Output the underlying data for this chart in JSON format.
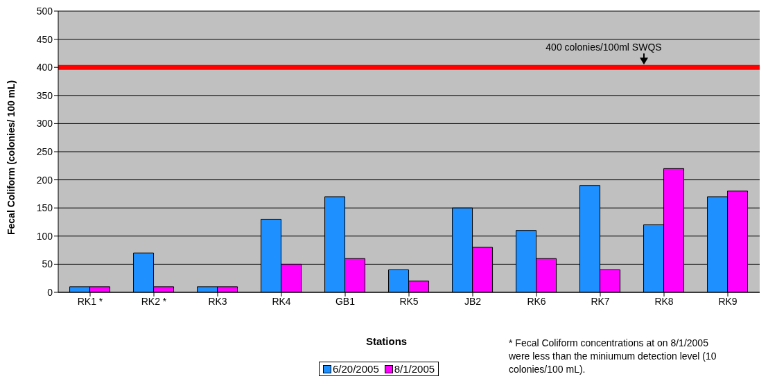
{
  "chart_data": {
    "type": "bar",
    "xlabel": "Stations",
    "ylabel": "Fecal Coliform (colonies/ 100 mL)",
    "categories": [
      "RK1 *",
      "RK2 *",
      "RK3",
      "RK4",
      "GB1",
      "RK5",
      "JB2",
      "RK6",
      "RK7",
      "RK8",
      "RK9"
    ],
    "series": [
      {
        "name": "6/20/2005",
        "color": "#1e90ff",
        "values": [
          10,
          70,
          10,
          130,
          170,
          40,
          150,
          110,
          190,
          120,
          170
        ]
      },
      {
        "name": "8/1/2005",
        "color": "#ff00ff",
        "values": [
          10,
          10,
          10,
          50,
          60,
          20,
          80,
          60,
          40,
          220,
          180
        ]
      }
    ],
    "ylim": [
      0,
      500
    ],
    "yticks": [
      0,
      50,
      100,
      150,
      200,
      250,
      300,
      350,
      400,
      450,
      500
    ],
    "grid": "y",
    "legend": "bottom",
    "ref_lines": [
      {
        "axis": "y",
        "value": 400,
        "label": "400 colonies/100ml SWQS",
        "color": "#ff0000"
      }
    ],
    "annotations": [
      "* Fecal Coliform concentrations at on 8/1/2005 were less than the miniumum detection level (10 colonies/100 mL)."
    ]
  }
}
